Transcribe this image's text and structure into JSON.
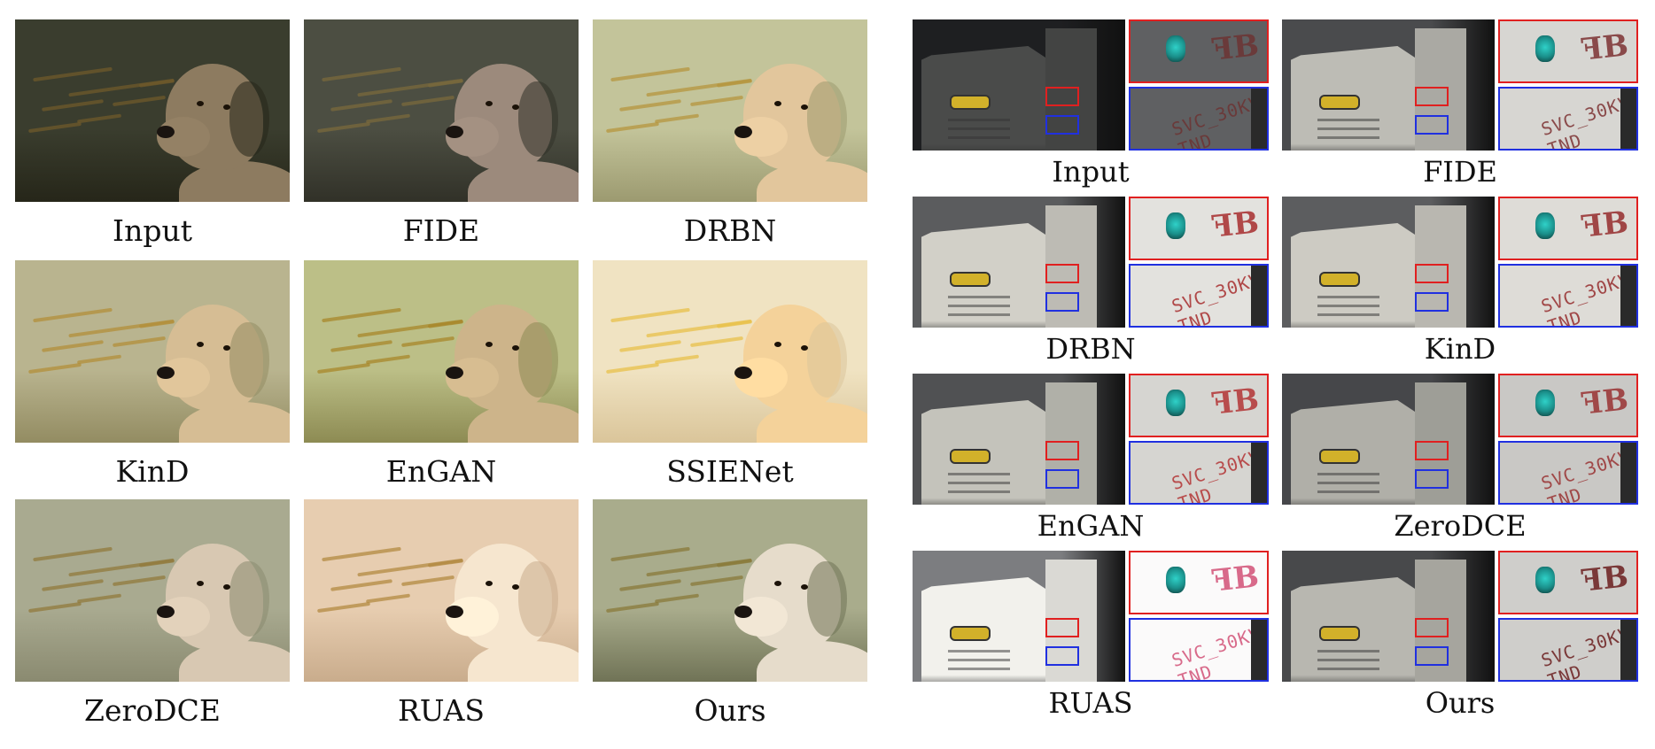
{
  "left_panel": {
    "captions": [
      "Input",
      "FIDE",
      "DRBN",
      "KinD",
      "EnGAN",
      "SSIENet",
      "ZeroDCE",
      "RUAS",
      "Ours"
    ],
    "tones": [
      {
        "water": "#3a3d2e",
        "dog": "#8d7b60",
        "leaf": "#6f5a2b",
        "shadow": "#262619"
      },
      {
        "water": "#4c4e42",
        "dog": "#9c8a7c",
        "leaf": "#7a6a3c",
        "shadow": "#313128"
      },
      {
        "water": "#c3c49a",
        "dog": "#e2c69c",
        "leaf": "#b5963e",
        "shadow": "#9c9a70"
      },
      {
        "water": "#b9b48f",
        "dog": "#d6bd94",
        "leaf": "#b38f3a",
        "shadow": "#938c62"
      },
      {
        "water": "#bcbf87",
        "dog": "#cdb48a",
        "leaf": "#a8872a",
        "shadow": "#8d8b53"
      },
      {
        "water": "#f0e3c2",
        "dog": "#f4d29a",
        "leaf": "#e8c04a",
        "shadow": "#dac59a"
      },
      {
        "water": "#a9aa90",
        "dog": "#d8c8b2",
        "leaf": "#927a3c",
        "shadow": "#8a8a70"
      },
      {
        "water": "#e7cdb0",
        "dog": "#f6e6cf",
        "leaf": "#b38a42",
        "shadow": "#c9ac8c"
      },
      {
        "water": "#a9ac8c",
        "dog": "#e6dccb",
        "leaf": "#8a7a3a",
        "shadow": "#707356"
      }
    ]
  },
  "right_panel": {
    "captions": [
      "Input",
      "FIDE",
      "DRBN",
      "KinD",
      "EnGAN",
      "ZeroDCE",
      "RUAS",
      "Ours"
    ],
    "tones": [
      {
        "wall": "#1e1f21",
        "box": "#4a4b4a",
        "zoom": "#5f6062",
        "text": "#6a3a3a"
      },
      {
        "wall": "#4a4b4d",
        "box": "#bdbcb5",
        "zoom": "#d7d6d2",
        "text": "#8a4a4a"
      },
      {
        "wall": "#5b5c5e",
        "box": "#d2d0c8",
        "zoom": "#e3e2de",
        "text": "#b04848"
      },
      {
        "wall": "#5c5d5f",
        "box": "#cdcbc3",
        "zoom": "#dedcd7",
        "text": "#a04646"
      },
      {
        "wall": "#505153",
        "box": "#c4c3bb",
        "zoom": "#d6d5d1",
        "text": "#b84c4c"
      },
      {
        "wall": "#46474a",
        "box": "#b0afa8",
        "zoom": "#c9c8c5",
        "text": "#a04848"
      },
      {
        "wall": "#7c7d80",
        "box": "#f2f1ec",
        "zoom": "#fbfafa",
        "text": "#d86a8a"
      },
      {
        "wall": "#48494b",
        "box": "#b8b7b0",
        "zoom": "#cfcecb",
        "text": "#7a3838"
      }
    ]
  }
}
